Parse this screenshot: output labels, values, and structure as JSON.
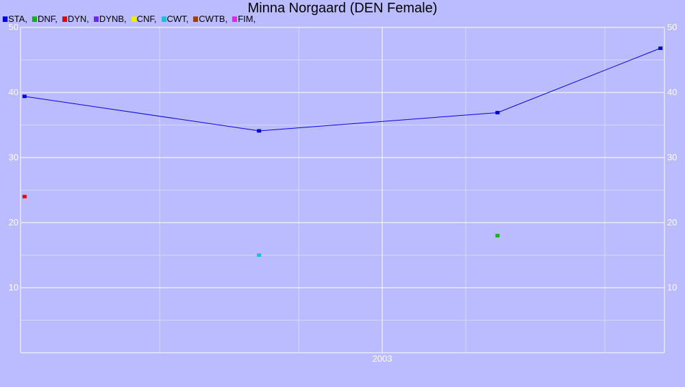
{
  "chart_data": {
    "type": "line",
    "title": "Minna Norgaard (DEN Female)",
    "xlabel": "",
    "ylabel": "",
    "ylim": [
      0,
      50
    ],
    "yticks": [
      10,
      20,
      30,
      40,
      50
    ],
    "xticks": [
      {
        "label": "2003",
        "x": 2003.0
      }
    ],
    "xlim": [
      2002.09,
      2003.71
    ],
    "grid": true,
    "legend_position": "top-left",
    "legend": [
      {
        "name": "STA,",
        "color": "#0000dd"
      },
      {
        "name": "DNF,",
        "color": "#00bb00"
      },
      {
        "name": "DYN,",
        "color": "#ee0000"
      },
      {
        "name": "DYNB,",
        "color": "#7722ee"
      },
      {
        "name": "CNF,",
        "color": "#eeee00"
      },
      {
        "name": "CWT,",
        "color": "#22bbdd"
      },
      {
        "name": "CWTB,",
        "color": "#994400"
      },
      {
        "name": "FIM,",
        "color": "#ee22ee"
      }
    ],
    "series": [
      {
        "name": "STA",
        "color": "#0000dd",
        "line": true,
        "points": [
          [
            2002.1,
            39.4
          ],
          [
            2002.69,
            34.1
          ],
          [
            2003.29,
            36.9
          ],
          [
            2003.7,
            46.8
          ]
        ]
      },
      {
        "name": "DNF",
        "color": "#00bb00",
        "line": false,
        "points": [
          [
            2003.29,
            18.0
          ]
        ]
      },
      {
        "name": "DYN",
        "color": "#ee0000",
        "line": false,
        "points": [
          [
            2002.1,
            24.0
          ]
        ]
      },
      {
        "name": "CWT",
        "color": "#22bbdd",
        "line": false,
        "points": [
          [
            2002.69,
            15.0
          ]
        ]
      }
    ]
  }
}
